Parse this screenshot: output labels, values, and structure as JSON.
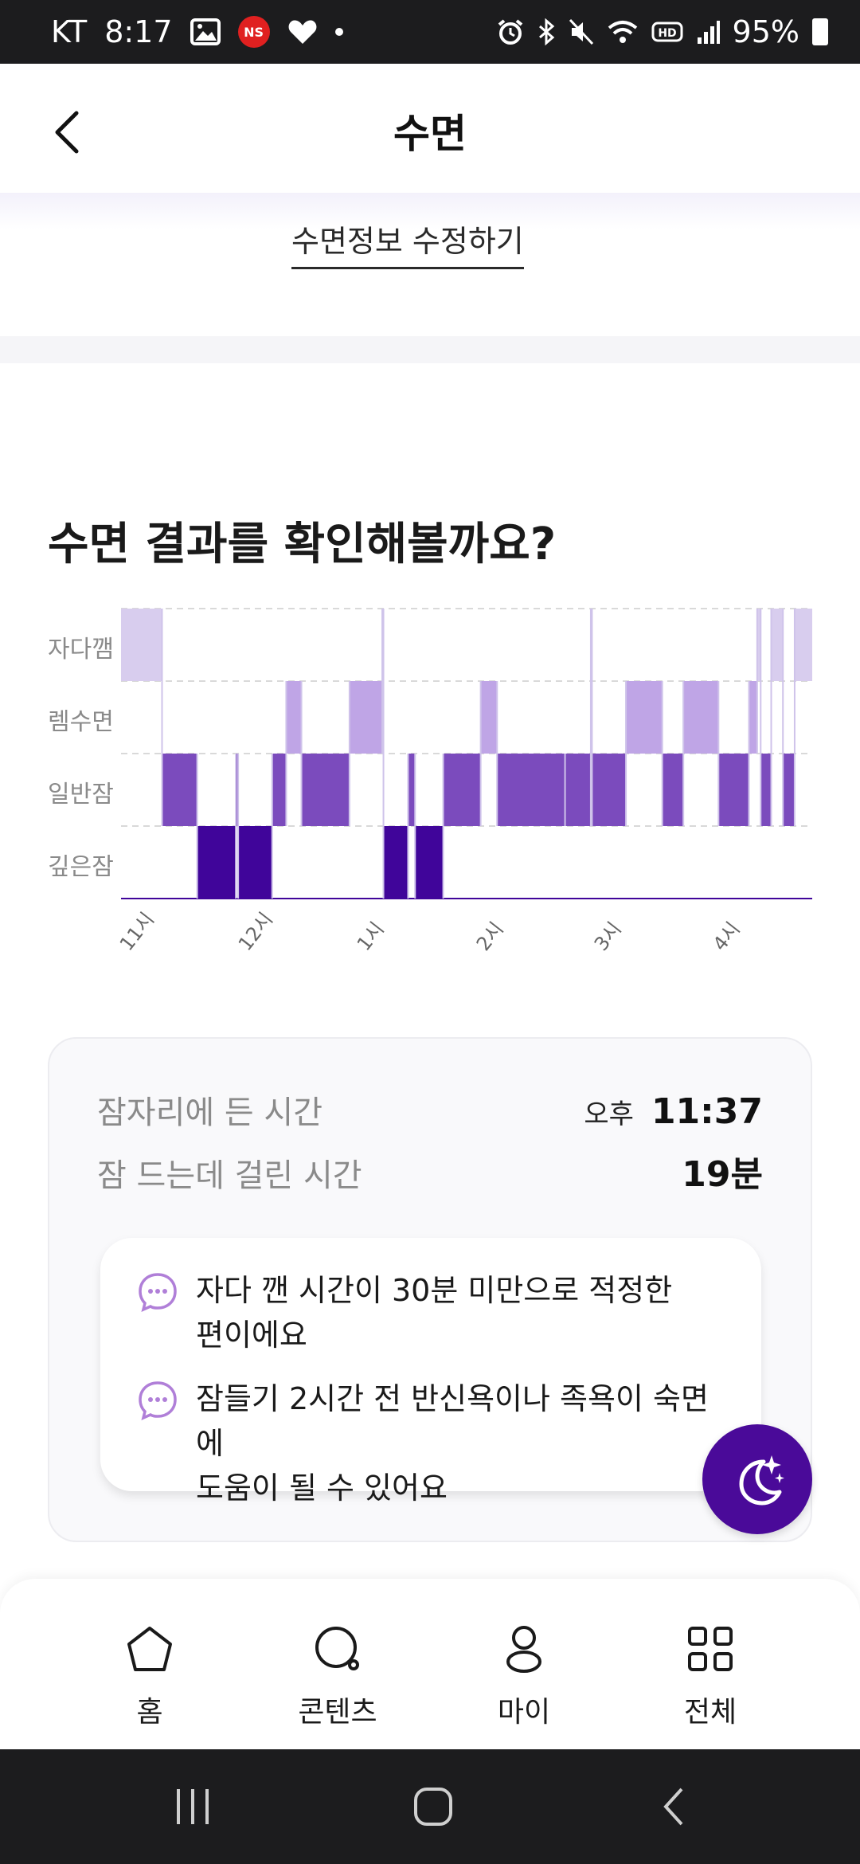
{
  "status_bar": {
    "carrier": "KT",
    "time": "8:17",
    "badge": "NS",
    "battery": "95%",
    "icons": [
      "image-icon",
      "heart-icon",
      "alarm-icon",
      "bluetooth-icon",
      "mute-icon",
      "wifi-icon",
      "hd-icon",
      "signal-icon",
      "battery-icon"
    ]
  },
  "header": {
    "title": "수면",
    "back_icon": "chevron-left-icon"
  },
  "edit": {
    "label": "수면정보 수정하기"
  },
  "result": {
    "title": "수면 결과를 확인해볼까요?"
  },
  "chart_data": {
    "type": "sleep-stage-timeline",
    "categories": [
      "자다깸",
      "렘수면",
      "일반잠",
      "깊은잠"
    ],
    "x_tick_labels": [
      "11시",
      "12시",
      "1시",
      "2시",
      "3시",
      "4시"
    ],
    "x_range_hours": [
      23.0,
      28.9
    ],
    "segments": [
      {
        "stage": "자다깸",
        "start": 23.0,
        "end": 23.35
      },
      {
        "stage": "일반잠",
        "start": 23.35,
        "end": 23.65
      },
      {
        "stage": "깊은잠",
        "start": 23.65,
        "end": 23.98
      },
      {
        "stage": "일반잠",
        "start": 23.98,
        "end": 24.0
      },
      {
        "stage": "깊은잠",
        "start": 24.0,
        "end": 24.29
      },
      {
        "stage": "일반잠",
        "start": 24.29,
        "end": 24.41
      },
      {
        "stage": "렘수면",
        "start": 24.41,
        "end": 24.54
      },
      {
        "stage": "일반잠",
        "start": 24.54,
        "end": 24.95
      },
      {
        "stage": "렘수면",
        "start": 24.95,
        "end": 25.23
      },
      {
        "stage": "자다깸",
        "start": 25.23,
        "end": 25.24
      },
      {
        "stage": "깊은잠",
        "start": 25.24,
        "end": 25.45
      },
      {
        "stage": "일반잠",
        "start": 25.45,
        "end": 25.51
      },
      {
        "stage": "깊은잠",
        "start": 25.51,
        "end": 25.75
      },
      {
        "stage": "일반잠",
        "start": 25.75,
        "end": 26.07
      },
      {
        "stage": "렘수면",
        "start": 26.07,
        "end": 26.21
      },
      {
        "stage": "일반잠",
        "start": 26.21,
        "end": 26.79
      },
      {
        "stage": "일반잠",
        "start": 26.79,
        "end": 27.01
      },
      {
        "stage": "자다깸",
        "start": 27.01,
        "end": 27.02
      },
      {
        "stage": "일반잠",
        "start": 27.02,
        "end": 27.31
      },
      {
        "stage": "렘수면",
        "start": 27.31,
        "end": 27.62
      },
      {
        "stage": "일반잠",
        "start": 27.62,
        "end": 27.8
      },
      {
        "stage": "렘수면",
        "start": 27.8,
        "end": 28.1
      },
      {
        "stage": "일반잠",
        "start": 28.1,
        "end": 28.36
      },
      {
        "stage": "렘수면",
        "start": 28.36,
        "end": 28.43
      },
      {
        "stage": "자다깸",
        "start": 28.43,
        "end": 28.46
      },
      {
        "stage": "일반잠",
        "start": 28.46,
        "end": 28.55
      },
      {
        "stage": "자다깸",
        "start": 28.55,
        "end": 28.65
      },
      {
        "stage": "일반잠",
        "start": 28.65,
        "end": 28.75
      },
      {
        "stage": "자다깸",
        "start": 28.75,
        "end": 28.9
      }
    ],
    "colors": {
      "자다깸": "#d8cdee",
      "렘수면": "#bfa5e6",
      "일반잠": "#7b4bbd",
      "깊은잠": "#40059a"
    },
    "gridlines": "dashed"
  },
  "info": {
    "bed_label": "잠자리에 든 시간",
    "bed_ampm": "오후",
    "bed_time": "11:37",
    "latency_label": "잠 드는데 걸린 시간",
    "latency_value": "19분"
  },
  "tips": [
    {
      "line1": "자다 깬 시간이 30분 미만으로 적정한",
      "line2": "편이에요"
    },
    {
      "line1": "잠들기 2시간 전 반신욕이나 족욕이 숙면에",
      "line2": "도움이 될 수 있어요"
    }
  ],
  "fab": {
    "icon": "moon-sparkle-icon"
  },
  "bottom_nav": [
    {
      "label": "홈",
      "icon": "home-icon"
    },
    {
      "label": "콘텐츠",
      "icon": "search-icon"
    },
    {
      "label": "마이",
      "icon": "person-icon"
    },
    {
      "label": "전체",
      "icon": "grid-icon"
    }
  ],
  "system_nav": [
    "recents-icon",
    "home-button-icon",
    "back-icon"
  ]
}
